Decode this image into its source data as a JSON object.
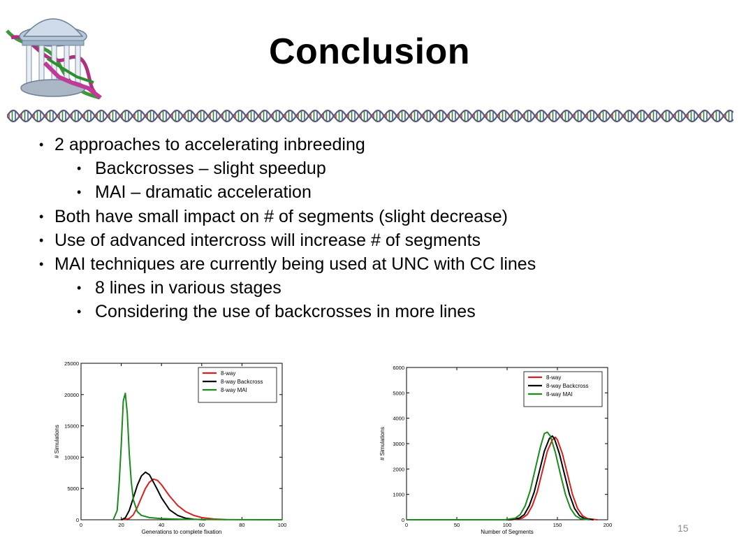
{
  "slide": {
    "title": "Conclusion",
    "page_number": "15"
  },
  "bullets": [
    {
      "level": 1,
      "text": "2 approaches  to accelerating inbreeding"
    },
    {
      "level": 2,
      "text": "Backcrosses – slight speedup"
    },
    {
      "level": 2,
      "text": "MAI – dramatic acceleration"
    },
    {
      "level": 1,
      "text": "Both have small impact on # of segments (slight decrease)"
    },
    {
      "level": 1,
      "text": "Use of advanced  intercross will increase # of segments"
    },
    {
      "level": 1,
      "text": "MAI techniques are currently being used at UNC with CC lines"
    },
    {
      "level": 2,
      "text": "8 lines in various stages"
    },
    {
      "level": 2,
      "text": "Considering the use of backcrosses in more lines"
    }
  ],
  "chart_data": [
    {
      "type": "line",
      "xlabel": "Generations to complete fixation",
      "ylabel": "# Simulations",
      "xlim": [
        0,
        100
      ],
      "ylim": [
        0,
        25000
      ],
      "xticks": [
        0,
        20,
        40,
        60,
        80,
        100
      ],
      "yticks": [
        0,
        5000,
        10000,
        15000,
        20000,
        25000
      ],
      "grid": false,
      "legend": "top-right",
      "series": [
        {
          "name": "8-way",
          "color": "#d62020",
          "x": [
            20,
            24,
            26,
            28,
            30,
            32,
            34,
            36,
            38,
            40,
            44,
            48,
            52,
            56,
            60,
            66,
            72
          ],
          "y": [
            0,
            200,
            800,
            2000,
            3500,
            5000,
            6000,
            6500,
            6300,
            5600,
            3800,
            2300,
            1300,
            700,
            350,
            120,
            20
          ]
        },
        {
          "name": "8-way Backcross",
          "color": "#000000",
          "x": [
            20,
            22,
            24,
            26,
            28,
            30,
            32,
            34,
            36,
            38,
            40,
            44,
            48,
            52,
            56,
            62
          ],
          "y": [
            0,
            300,
            1500,
            3500,
            5500,
            7000,
            7600,
            7200,
            6000,
            4800,
            3500,
            1600,
            700,
            250,
            80,
            0
          ]
        },
        {
          "name": "8-way MAI",
          "color": "#1a8a1a",
          "x": [
            16,
            18,
            19,
            20,
            21,
            22,
            23,
            24,
            25,
            26,
            28,
            30,
            34,
            40,
            50,
            60,
            80,
            100
          ],
          "y": [
            0,
            1500,
            6000,
            12000,
            19000,
            20200,
            17000,
            10500,
            6000,
            3200,
            1300,
            700,
            350,
            180,
            80,
            40,
            15,
            0
          ]
        }
      ]
    },
    {
      "type": "line",
      "xlabel": "Number of Segments",
      "ylabel": "# Simulations",
      "xlim": [
        0,
        200
      ],
      "ylim": [
        0,
        6000
      ],
      "xticks": [
        0,
        50,
        100,
        150,
        200
      ],
      "yticks": [
        0,
        1000,
        2000,
        3000,
        4000,
        5000,
        6000
      ],
      "grid": false,
      "legend": "top-right",
      "series": [
        {
          "name": "8-way",
          "color": "#d62020",
          "x": [
            0,
            105,
            115,
            120,
            125,
            130,
            135,
            140,
            145,
            148,
            150,
            155,
            160,
            165,
            170,
            175,
            180,
            190
          ],
          "y": [
            0,
            0,
            60,
            200,
            550,
            1100,
            1900,
            2700,
            3150,
            3250,
            3150,
            2600,
            1800,
            1000,
            450,
            160,
            40,
            0
          ]
        },
        {
          "name": "8-way Backcross",
          "color": "#000000",
          "x": [
            0,
            102,
            112,
            117,
            122,
            127,
            132,
            137,
            142,
            145,
            147,
            152,
            157,
            162,
            167,
            172,
            177,
            186
          ],
          "y": [
            0,
            0,
            60,
            200,
            550,
            1100,
            1900,
            2700,
            3200,
            3300,
            3200,
            2600,
            1800,
            1000,
            450,
            160,
            40,
            0
          ]
        },
        {
          "name": "8-way MAI",
          "color": "#1a8a1a",
          "x": [
            0,
            98,
            108,
            113,
            118,
            123,
            128,
            133,
            137,
            140,
            143,
            148,
            153,
            158,
            163,
            168,
            173,
            182
          ],
          "y": [
            0,
            0,
            60,
            200,
            550,
            1150,
            2000,
            2850,
            3400,
            3450,
            3300,
            2650,
            1800,
            1000,
            450,
            160,
            40,
            0
          ]
        }
      ]
    }
  ]
}
